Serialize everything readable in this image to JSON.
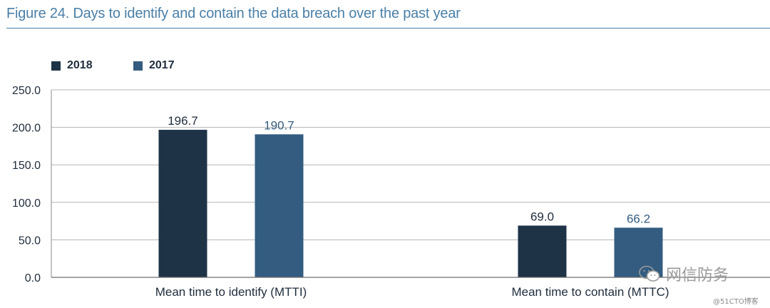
{
  "figure": {
    "title": "Figure 24. Days to identify and contain the data breach over the past year"
  },
  "colors": {
    "title": "#4a7fa7",
    "series_2018": "#1f3347",
    "series_2017": "#335c80",
    "grid": "#b5b5b5",
    "text": "#1f2d3d"
  },
  "watermark": {
    "icon": "wechat-icon",
    "text": "网信防务",
    "credit": "@51CTO博客"
  },
  "chart_data": {
    "type": "bar",
    "title": "Figure 24. Days to identify and contain the data breach over the past year",
    "categories": [
      "Mean time to identify (MTTI)",
      "Mean time to contain (MTTC)"
    ],
    "series": [
      {
        "name": "2018",
        "values": [
          196.7,
          69.0
        ],
        "labels": [
          "196.7",
          "69.0"
        ],
        "color": "#1f3347"
      },
      {
        "name": "2017",
        "values": [
          190.7,
          66.2
        ],
        "labels": [
          "190.7",
          "66.2"
        ],
        "color": "#335c80"
      }
    ],
    "yticks": [
      "250.0",
      "200.0",
      "150.0",
      "100.0",
      "50.0",
      "0.0"
    ],
    "ylim": [
      0,
      250
    ],
    "grid": true,
    "legend": "top-left",
    "xlabel": "",
    "ylabel": ""
  }
}
